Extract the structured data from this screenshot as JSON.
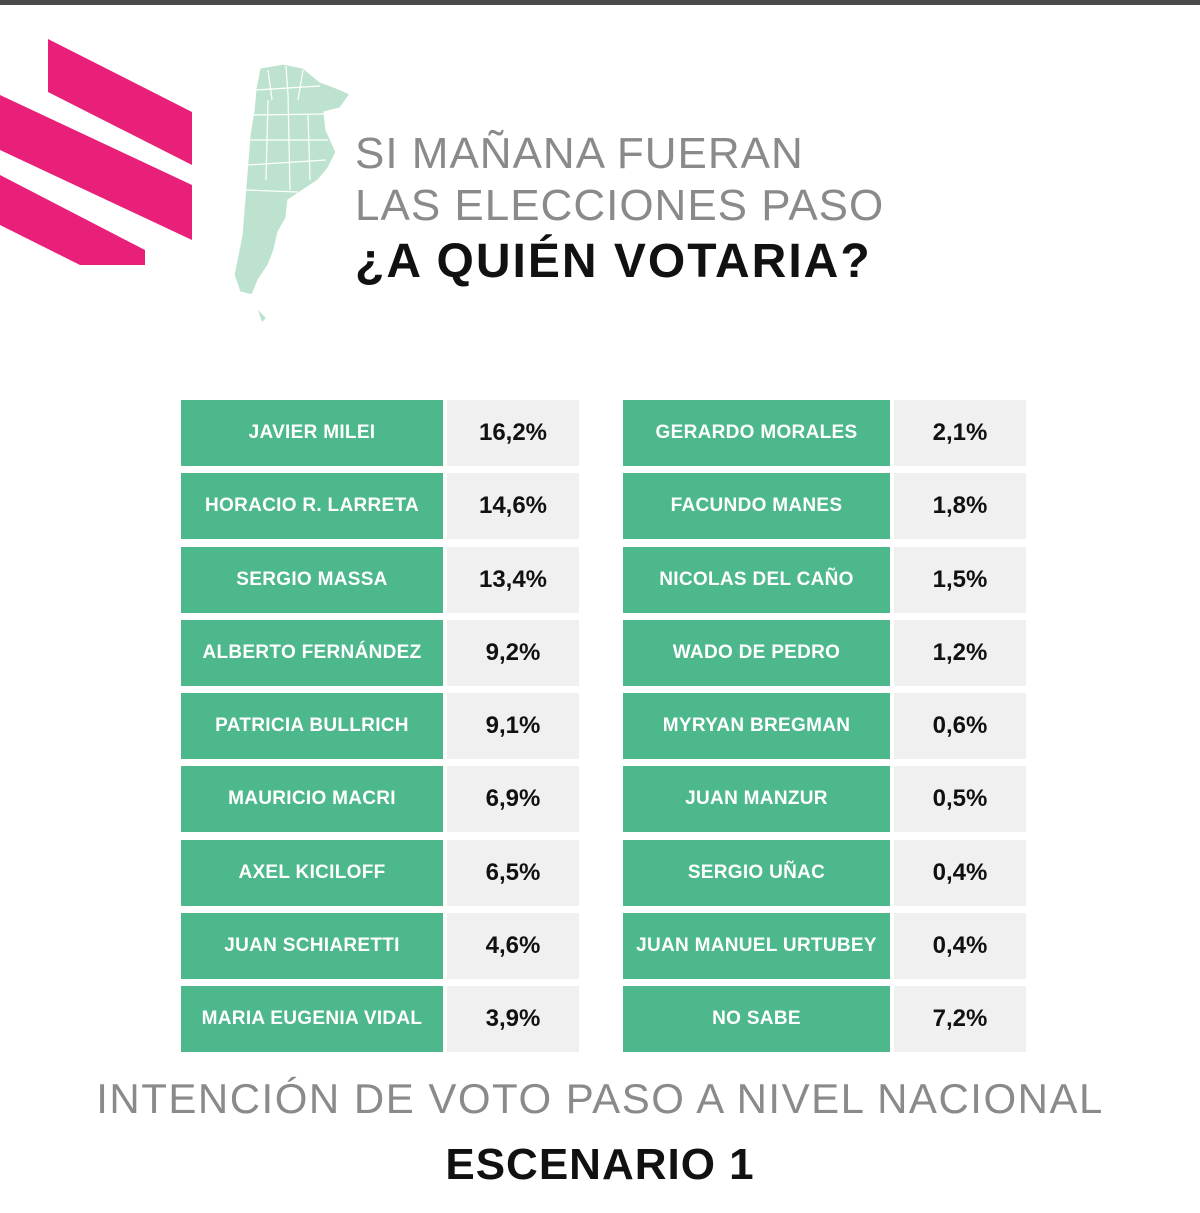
{
  "header": {
    "line1": "SI MAÑANA FUERAN",
    "line2": "LAS ELECCIONES PASO",
    "question": "¿A QUIÉN VOTARIA?"
  },
  "colors": {
    "accent_green": "#4db88c",
    "brand_pink": "#e8207a",
    "value_bg": "#f0f0f0"
  },
  "icons": {
    "brand": "brand-stripes-icon",
    "map": "argentina-map-icon"
  },
  "chart_data": {
    "type": "table",
    "title": "INTENCIÓN DE VOTO PASO A NIVEL NACIONAL",
    "subtitle": "ESCENARIO 1",
    "unit": "%",
    "left_column": [
      {
        "name": "JAVIER MILEI",
        "label": "16,2%",
        "value": 16.2
      },
      {
        "name": "HORACIO R. LARRETA",
        "label": "14,6%",
        "value": 14.6
      },
      {
        "name": "SERGIO MASSA",
        "label": "13,4%",
        "value": 13.4
      },
      {
        "name": "ALBERTO FERNÁNDEZ",
        "label": "9,2%",
        "value": 9.2
      },
      {
        "name": "PATRICIA BULLRICH",
        "label": "9,1%",
        "value": 9.1
      },
      {
        "name": "MAURICIO MACRI",
        "label": "6,9%",
        "value": 6.9
      },
      {
        "name": "AXEL KICILOFF",
        "label": "6,5%",
        "value": 6.5
      },
      {
        "name": "JUAN SCHIARETTI",
        "label": "4,6%",
        "value": 4.6
      },
      {
        "name": "MARIA EUGENIA VIDAL",
        "label": "3,9%",
        "value": 3.9
      }
    ],
    "right_column": [
      {
        "name": "GERARDO MORALES",
        "label": "2,1%",
        "value": 2.1
      },
      {
        "name": "FACUNDO MANES",
        "label": "1,8%",
        "value": 1.8
      },
      {
        "name": "NICOLAS DEL CAÑO",
        "label": "1,5%",
        "value": 1.5
      },
      {
        "name": "WADO DE PEDRO",
        "label": "1,2%",
        "value": 1.2
      },
      {
        "name": "MYRYAN BREGMAN",
        "label": "0,6%",
        "value": 0.6
      },
      {
        "name": "JUAN MANZUR",
        "label": "0,5%",
        "value": 0.5
      },
      {
        "name": "SERGIO UÑAC",
        "label": "0,4%",
        "value": 0.4
      },
      {
        "name": "JUAN MANUEL URTUBEY",
        "label": "0,4%",
        "value": 0.4
      },
      {
        "name": "NO SABE",
        "label": "7,2%",
        "value": 7.2
      }
    ]
  }
}
